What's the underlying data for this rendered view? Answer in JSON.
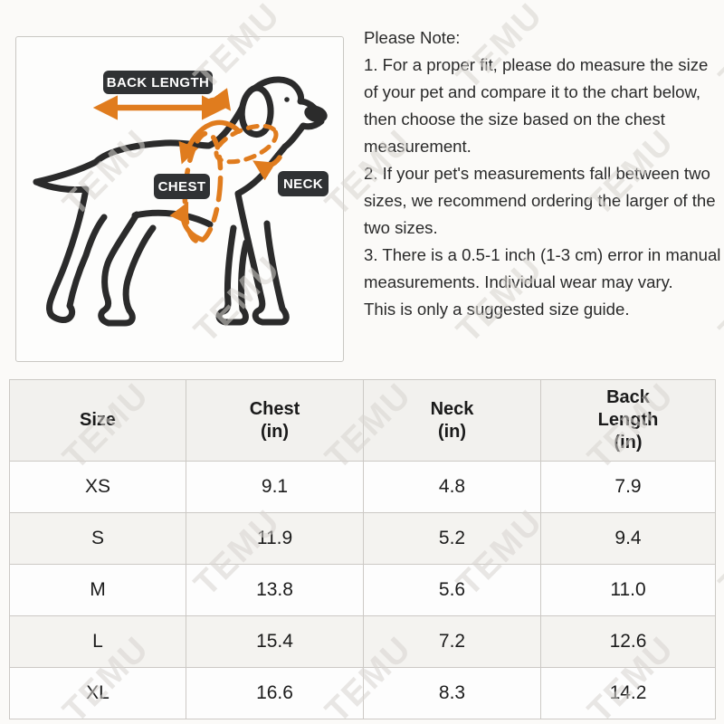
{
  "watermark": {
    "text": "TEMU"
  },
  "diagram": {
    "labels": {
      "back_length": "BACK LENGTH",
      "chest": "CHEST",
      "neck": "NECK"
    },
    "colors": {
      "annotation_orange": "#e07c1e",
      "outline_dark": "#2b2b2b",
      "label_bg": "#303234"
    }
  },
  "notes": {
    "title": "Please Note:",
    "items": [
      "1. For a proper fit, please do measure the size of your pet and compare it to the chart below, then choose the size based on the chest measurement.",
      "2. If your pet's measurements fall between two sizes, we recommend ordering the larger of the two sizes.",
      "3. There is a 0.5-1 inch (1-3 cm) error in manual measurements. Individual wear may vary."
    ],
    "footer": "This is only a suggested size guide."
  },
  "size_table": {
    "headers": [
      "Size",
      "Chest\n(in)",
      "Neck\n(in)",
      "Back\nLength\n(in)"
    ],
    "rows": [
      {
        "size": "XS",
        "chest": "9.1",
        "neck": "4.8",
        "back_length": "7.9"
      },
      {
        "size": "S",
        "chest": "11.9",
        "neck": "5.2",
        "back_length": "9.4"
      },
      {
        "size": "M",
        "chest": "13.8",
        "neck": "5.6",
        "back_length": "11.0"
      },
      {
        "size": "L",
        "chest": "15.4",
        "neck": "7.2",
        "back_length": "12.6"
      },
      {
        "size": "XL",
        "chest": "16.6",
        "neck": "8.3",
        "back_length": "14.2"
      }
    ]
  }
}
